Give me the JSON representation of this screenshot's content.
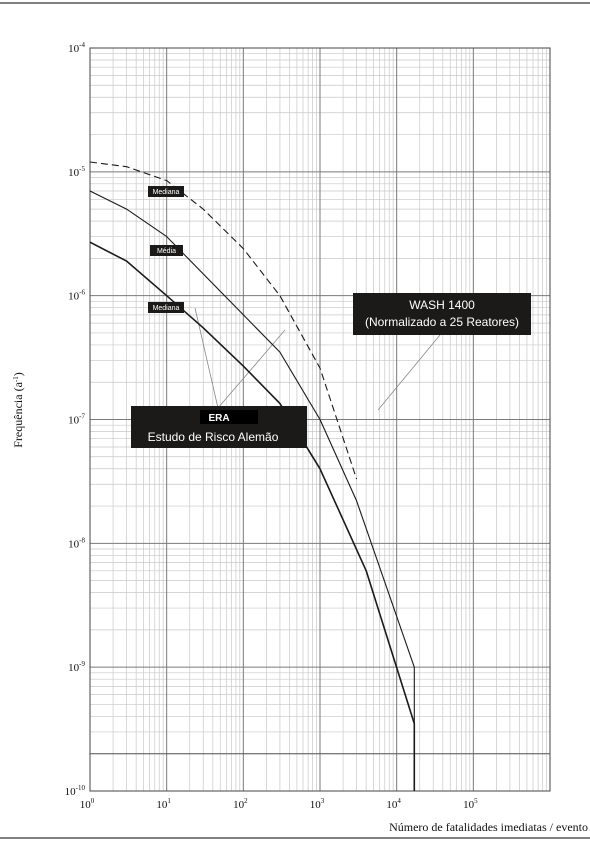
{
  "chart_data": {
    "type": "line",
    "xlabel": "Número de fatalidades imediatas / evento",
    "ylabel_base": "Frequência (a",
    "ylabel_sup": "-1",
    "ylabel_close": ")",
    "xscale": "log",
    "yscale": "log",
    "xlim": [
      1,
      1000000
    ],
    "ylim": [
      1e-10,
      0.0001
    ],
    "grid": true,
    "x_ticks": [
      {
        "value": 1,
        "base": "10",
        "exp": "0"
      },
      {
        "value": 10,
        "base": "10",
        "exp": "1"
      },
      {
        "value": 100,
        "base": "10",
        "exp": "2"
      },
      {
        "value": 1000,
        "base": "10",
        "exp": "3"
      },
      {
        "value": 10000,
        "base": "10",
        "exp": "4"
      },
      {
        "value": 100000,
        "base": "10",
        "exp": "5"
      }
    ],
    "y_ticks": [
      {
        "value": 0.0001,
        "base": "10",
        "exp": "-4"
      },
      {
        "value": 1e-05,
        "base": "10",
        "exp": "-5"
      },
      {
        "value": 1e-06,
        "base": "10",
        "exp": "-6"
      },
      {
        "value": 1e-07,
        "base": "10",
        "exp": "-7"
      },
      {
        "value": 1e-08,
        "base": "10",
        "exp": "-8"
      },
      {
        "value": 1e-09,
        "base": "10",
        "exp": "-9"
      },
      {
        "value": 1e-10,
        "base": "10",
        "exp": "-10"
      }
    ],
    "series": [
      {
        "style": "dashed",
        "points": [
          [
            1,
            1.2e-05
          ],
          [
            3,
            1.1e-05
          ],
          [
            10,
            8.5e-06
          ],
          [
            30,
            5e-06
          ],
          [
            100,
            2.4e-06
          ],
          [
            300,
            1e-06
          ],
          [
            1000,
            2.6e-07
          ],
          [
            3000,
            3.3e-08
          ]
        ]
      },
      {
        "style": "solid",
        "points": [
          [
            1,
            7e-06
          ],
          [
            3,
            5e-06
          ],
          [
            10,
            3e-06
          ],
          [
            30,
            1.5e-06
          ],
          [
            100,
            7e-07
          ],
          [
            300,
            3.5e-07
          ],
          [
            1000,
            1e-07
          ],
          [
            3000,
            2.2e-08
          ],
          [
            17000,
            1e-09
          ],
          [
            17000,
            1e-10
          ]
        ]
      },
      {
        "style": "solid-bold",
        "points": [
          [
            1,
            2.7e-06
          ],
          [
            3,
            1.9e-06
          ],
          [
            10,
            1e-06
          ],
          [
            30,
            5.5e-07
          ],
          [
            100,
            2.7e-07
          ],
          [
            300,
            1.35e-07
          ],
          [
            1000,
            4e-08
          ],
          [
            4000,
            6e-09
          ],
          [
            17000,
            3.5e-10
          ],
          [
            17000,
            1e-10
          ]
        ]
      }
    ],
    "reference_line": {
      "y": 2e-10
    },
    "annotations": {
      "median_upper": "Mediana",
      "mean": "Média",
      "median_lower": "Mediana",
      "era_title": "ERA",
      "era_subtitle": "Estudo de Risco Alemão",
      "wash_line1": "WASH 1400",
      "wash_line2": "(Normalizado a 25 Reatores)"
    }
  }
}
